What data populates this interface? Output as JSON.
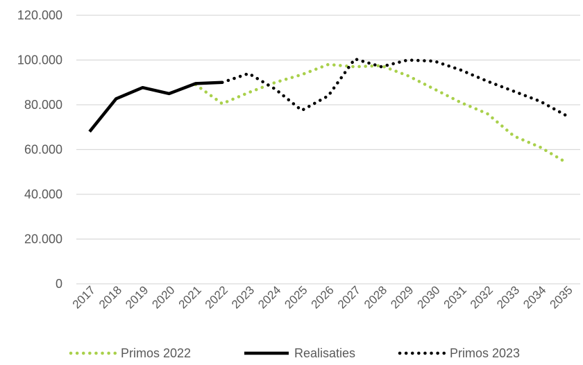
{
  "chart_data": {
    "type": "line",
    "title": "",
    "xlabel": "",
    "ylabel": "",
    "x": [
      "2017",
      "2018",
      "2019",
      "2020",
      "2021",
      "2022",
      "2023",
      "2024",
      "2025",
      "2026",
      "2027",
      "2028",
      "2029",
      "2030",
      "2031",
      "2032",
      "2033",
      "2034",
      "2035"
    ],
    "ylim": [
      0,
      120000
    ],
    "y_ticks": [
      0,
      20000,
      40000,
      60000,
      80000,
      100000,
      120000
    ],
    "y_tick_labels": [
      "0",
      "20.000",
      "40.000",
      "60.000",
      "80.000",
      "100.000",
      "120.000"
    ],
    "grid": "horizontal",
    "legend_position": "bottom",
    "series": [
      {
        "name": "Primos 2022",
        "style": "dotted",
        "color": "#a9d04b",
        "values": [
          null,
          null,
          null,
          null,
          89000,
          80500,
          85500,
          90000,
          93500,
          98000,
          97000,
          97500,
          93000,
          87000,
          81000,
          76000,
          66000,
          61000,
          54000
        ]
      },
      {
        "name": "Realisaties",
        "style": "solid",
        "color": "#000000",
        "values": [
          68000,
          82700,
          87700,
          85000,
          89500,
          90000,
          null,
          null,
          null,
          null,
          null,
          null,
          null,
          null,
          null,
          null,
          null,
          null,
          null
        ]
      },
      {
        "name": "Primos 2023",
        "style": "dotted",
        "color": "#000000",
        "values": [
          null,
          null,
          null,
          null,
          null,
          90000,
          94000,
          87000,
          77500,
          84000,
          100500,
          97000,
          100000,
          99500,
          95500,
          90500,
          86000,
          81500,
          75000
        ]
      }
    ]
  }
}
